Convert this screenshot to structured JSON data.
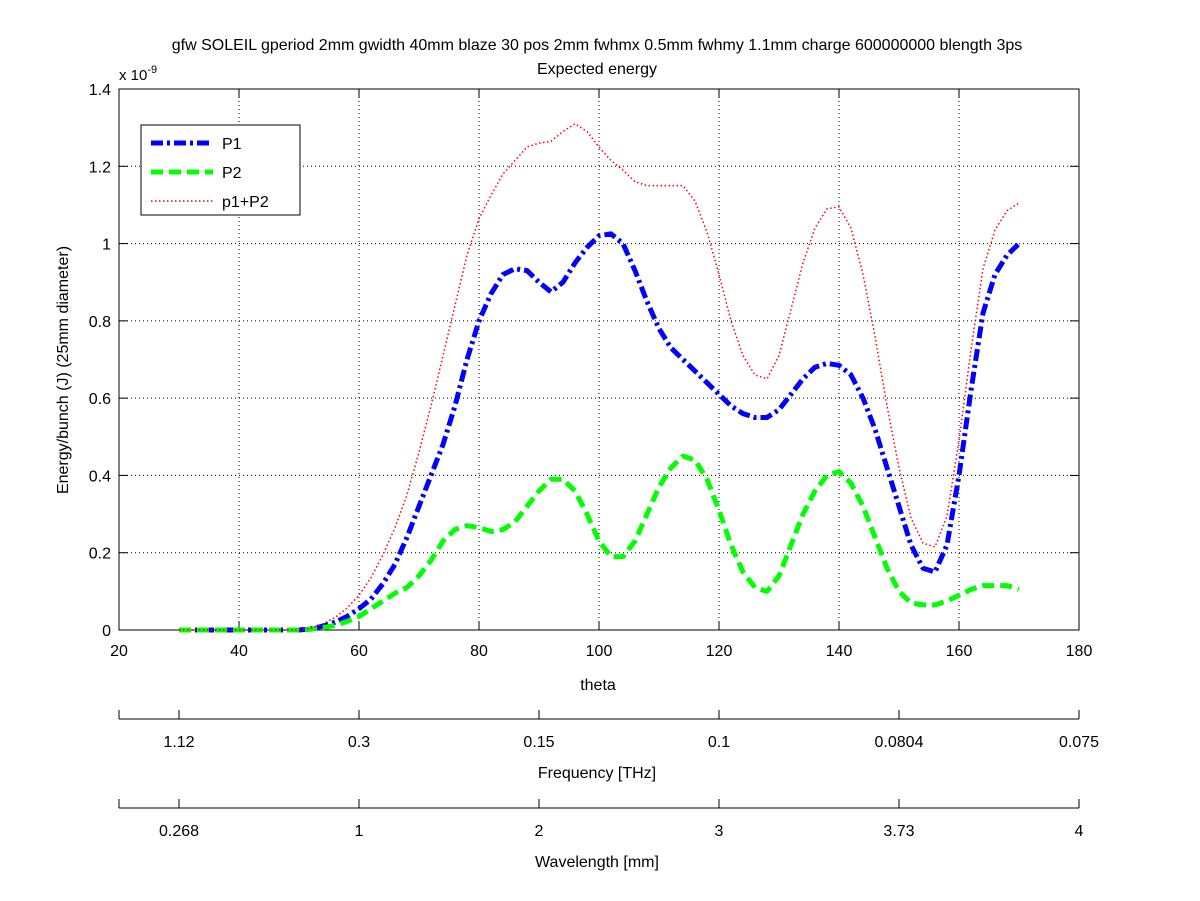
{
  "chart_data": {
    "type": "line",
    "title": "gfw SOLEIL gperiod 2mm gwidth 40mm blaze 30 pos 2mm fwhmx 0.5mm fwhmy 1.1mm charge 600000000 blength 3ps",
    "subtitle": "Expected energy",
    "xlabel": "theta",
    "ylabel": "Energy/bunch (J) (25mm diameter)",
    "y_multiplier_base": "x 10",
    "y_multiplier_exp": "-9",
    "xlim": [
      20,
      180
    ],
    "ylim": [
      0,
      1.4
    ],
    "xticks": [
      "20",
      "40",
      "60",
      "80",
      "100",
      "120",
      "140",
      "160",
      "180"
    ],
    "yticks": [
      "0",
      "0.2",
      "0.4",
      "0.6",
      "0.8",
      "1",
      "1.2",
      "1.4"
    ],
    "grid": true,
    "legend_position": "top-left",
    "x": [
      30,
      35,
      40,
      45,
      50,
      52,
      54,
      56,
      58,
      60,
      62,
      64,
      66,
      68,
      70,
      72,
      74,
      76,
      78,
      80,
      82,
      84,
      86,
      88,
      90,
      92,
      94,
      96,
      98,
      100,
      102,
      104,
      106,
      108,
      110,
      112,
      114,
      116,
      118,
      120,
      122,
      124,
      126,
      128,
      130,
      132,
      134,
      136,
      138,
      140,
      142,
      144,
      146,
      148,
      150,
      152,
      154,
      156,
      158,
      160,
      162,
      164,
      166,
      168,
      170
    ],
    "series": [
      {
        "name": "P1",
        "color": "#0000ff",
        "style": "dashdot",
        "values": [
          0,
          0,
          0,
          0,
          0,
          0.003,
          0.01,
          0.02,
          0.035,
          0.055,
          0.08,
          0.12,
          0.17,
          0.24,
          0.32,
          0.4,
          0.48,
          0.58,
          0.7,
          0.8,
          0.87,
          0.92,
          0.935,
          0.93,
          0.9,
          0.875,
          0.9,
          0.95,
          0.99,
          1.02,
          1.025,
          1.0,
          0.93,
          0.85,
          0.78,
          0.73,
          0.7,
          0.67,
          0.64,
          0.61,
          0.58,
          0.56,
          0.55,
          0.55,
          0.57,
          0.61,
          0.65,
          0.68,
          0.69,
          0.685,
          0.66,
          0.6,
          0.52,
          0.42,
          0.32,
          0.22,
          0.16,
          0.15,
          0.22,
          0.4,
          0.62,
          0.82,
          0.92,
          0.97,
          1.0
        ]
      },
      {
        "name": "P2",
        "color": "#00ff00",
        "style": "dashed",
        "values": [
          0,
          0,
          0,
          0,
          0,
          0.002,
          0.006,
          0.012,
          0.022,
          0.035,
          0.055,
          0.075,
          0.095,
          0.11,
          0.14,
          0.18,
          0.23,
          0.26,
          0.27,
          0.265,
          0.255,
          0.26,
          0.28,
          0.32,
          0.36,
          0.39,
          0.39,
          0.36,
          0.3,
          0.23,
          0.19,
          0.19,
          0.23,
          0.3,
          0.37,
          0.42,
          0.45,
          0.44,
          0.39,
          0.31,
          0.22,
          0.15,
          0.11,
          0.1,
          0.14,
          0.22,
          0.3,
          0.36,
          0.4,
          0.41,
          0.38,
          0.32,
          0.24,
          0.16,
          0.1,
          0.07,
          0.065,
          0.065,
          0.075,
          0.09,
          0.105,
          0.115,
          0.115,
          0.115,
          0.105
        ]
      },
      {
        "name": "p1+P2",
        "color": "#ff0000",
        "style": "dotted",
        "values": [
          0,
          0,
          0,
          0,
          0,
          0.005,
          0.016,
          0.032,
          0.057,
          0.09,
          0.135,
          0.195,
          0.265,
          0.35,
          0.46,
          0.58,
          0.71,
          0.84,
          0.97,
          1.065,
          1.125,
          1.18,
          1.215,
          1.25,
          1.26,
          1.265,
          1.29,
          1.31,
          1.29,
          1.25,
          1.215,
          1.19,
          1.16,
          1.15,
          1.15,
          1.15,
          1.15,
          1.11,
          1.03,
          0.92,
          0.8,
          0.71,
          0.66,
          0.65,
          0.71,
          0.83,
          0.95,
          1.04,
          1.09,
          1.095,
          1.04,
          0.92,
          0.76,
          0.58,
          0.42,
          0.29,
          0.225,
          0.215,
          0.295,
          0.49,
          0.725,
          0.935,
          1.035,
          1.085,
          1.105
        ]
      }
    ],
    "secondary_axes": [
      {
        "label": "Frequency [THz]",
        "ticks": [
          "1.12",
          "0.3",
          "0.15",
          "0.1",
          "0.0804",
          "0.075"
        ],
        "tick_theta": [
          30,
          60,
          90,
          120,
          150,
          180
        ]
      },
      {
        "label": "Wavelength [mm]",
        "ticks": [
          "0.268",
          "1",
          "2",
          "3",
          "3.73",
          "4"
        ],
        "tick_theta": [
          30,
          60,
          90,
          120,
          150,
          180
        ]
      }
    ]
  }
}
